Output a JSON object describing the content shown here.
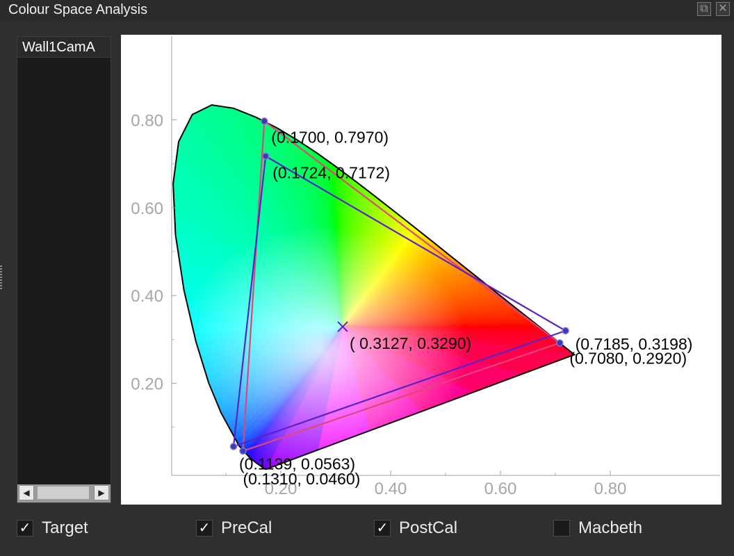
{
  "window": {
    "title": "Colour Space Analysis",
    "float_icon": "restore-window-icon",
    "close_icon": "close-icon"
  },
  "list": {
    "items": [
      "Wall1CamA"
    ],
    "scroll_left_icon": "arrow-left-icon",
    "scroll_right_icon": "arrow-right-icon"
  },
  "checkboxes": [
    {
      "label": "Target",
      "checked": true
    },
    {
      "label": "PreCal",
      "checked": true
    },
    {
      "label": "PostCal",
      "checked": true
    },
    {
      "label": "Macbeth",
      "checked": false
    }
  ],
  "colors": {
    "target_triangle": "#e0457a",
    "measured_triangle": "#5a22c8",
    "locus_outline": "#000000"
  },
  "chart_data": {
    "type": "scatter",
    "title": "",
    "xlabel": "",
    "ylabel": "",
    "xlim": [
      0.0,
      0.8
    ],
    "ylim": [
      0.0,
      0.9
    ],
    "xticks": [
      "0.20",
      "0.40",
      "0.60",
      "0.80"
    ],
    "yticks": [
      "0.20",
      "0.40",
      "0.60",
      "0.80"
    ],
    "grid": false,
    "series": [
      {
        "points": [
          [
            0.17,
            0.797
          ],
          [
            0.708,
            0.292
          ],
          [
            0.131,
            0.046
          ]
        ],
        "labels": [
          "(0.1700, 0.7970)",
          "(0.7080, 0.2920)",
          "(0.1310, 0.0460)"
        ]
      },
      {
        "points": [
          [
            0.1724,
            0.7172
          ],
          [
            0.7185,
            0.3198
          ],
          [
            0.1139,
            0.0563
          ]
        ],
        "labels": [
          "(0.1724, 0.7172)",
          "(0.7185, 0.3198)",
          "(0.1139, 0.0563)"
        ]
      }
    ],
    "white_point": {
      "x": 0.3127,
      "y": 0.329,
      "label": "( 0.3127, 0.3290)"
    }
  }
}
